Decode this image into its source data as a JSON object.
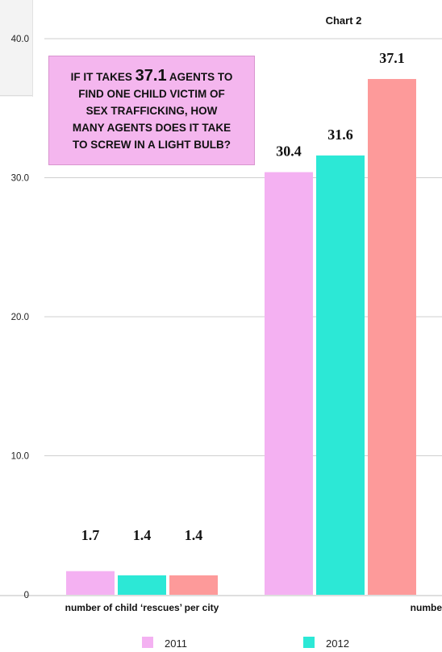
{
  "chart_data": {
    "type": "bar",
    "title": "Chart 2",
    "categories": [
      "number of child ‘rescues’ per city",
      "numbe"
    ],
    "series": [
      {
        "name": "2011",
        "color": "#f4b1f2",
        "values": [
          1.7,
          30.4
        ],
        "labels": [
          "1.7",
          "30.4"
        ]
      },
      {
        "name": "2012",
        "color": "#2ce8d6",
        "values": [
          1.4,
          31.6
        ],
        "labels": [
          "1.4",
          "31.6"
        ]
      },
      {
        "name": "",
        "color": "#fd9a9a",
        "values": [
          1.4,
          37.1
        ],
        "labels": [
          "1.4",
          "37.1"
        ]
      }
    ],
    "ylim": [
      0,
      40
    ],
    "yticks": [
      "0",
      "10.0",
      "20.0",
      "30.0",
      "40.0"
    ],
    "grid": true,
    "legend_position": "bottom"
  },
  "callout": {
    "line1_pre": "IF IT TAKES",
    "line1_num": "37.1",
    "line1_post": "AGENTS TO",
    "line2": "FIND ONE CHILD VICTIM OF",
    "line3": "SEX TRAFFICKING, HOW",
    "line4": "MANY AGENTS DOES IT TAKE",
    "line5": "TO SCREW IN A LIGHT BULB?"
  }
}
